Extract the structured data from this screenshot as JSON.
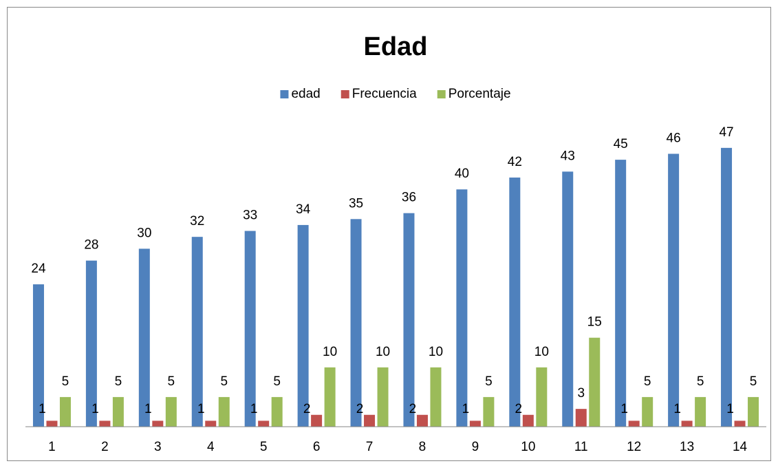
{
  "chart_data": {
    "type": "bar",
    "title": "Edad",
    "categories": [
      1,
      2,
      3,
      4,
      5,
      6,
      7,
      8,
      9,
      10,
      11,
      12,
      13,
      14
    ],
    "series": [
      {
        "name": "edad",
        "color": "#4f81bd",
        "values": [
          24,
          28,
          30,
          32,
          33,
          34,
          35,
          36,
          40,
          42,
          43,
          45,
          46,
          47
        ]
      },
      {
        "name": "Frecuencia",
        "color": "#c0504d",
        "values": [
          1,
          1,
          1,
          1,
          1,
          2,
          2,
          2,
          1,
          2,
          3,
          1,
          1,
          1
        ]
      },
      {
        "name": "Porcentaje",
        "color": "#9bbb59",
        "values": [
          5,
          5,
          5,
          5,
          5,
          10,
          10,
          10,
          5,
          10,
          15,
          5,
          5,
          5
        ]
      }
    ],
    "ylim": [
      0,
      50
    ],
    "legend": "top"
  }
}
